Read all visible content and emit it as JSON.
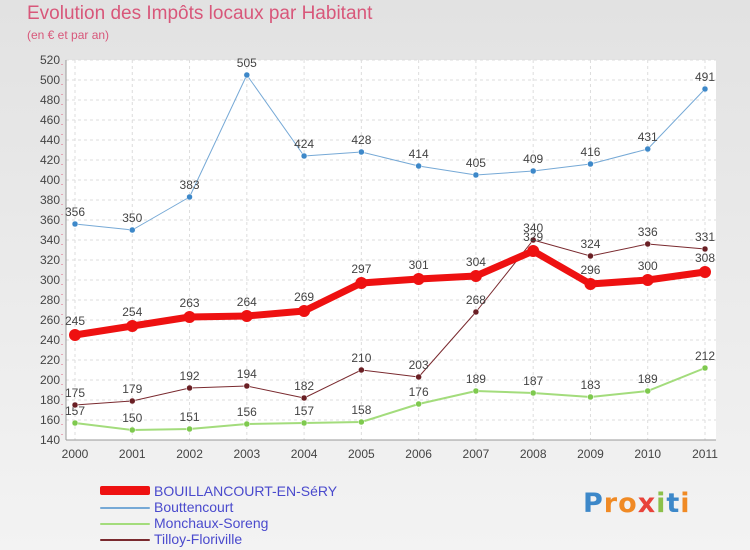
{
  "title": "Evolution des Impôts locaux par Habitant",
  "subtitle": "(en € et par an)",
  "brand": {
    "letters": [
      {
        "char": "P",
        "color": "#3d88c9"
      },
      {
        "char": "r",
        "color": "#f08a24"
      },
      {
        "char": "o",
        "color": "#f08a24"
      },
      {
        "char": "x",
        "color": "#e8433b"
      },
      {
        "char": "i",
        "color": "#8cc04a"
      },
      {
        "char": "t",
        "color": "#3d88c9"
      },
      {
        "char": "i",
        "color": "#f08a24"
      }
    ]
  },
  "chart_data": {
    "type": "line",
    "x": [
      "2000",
      "2001",
      "2002",
      "2003",
      "2004",
      "2005",
      "2006",
      "2007",
      "2008",
      "2009",
      "2010",
      "2011"
    ],
    "ylim": [
      140,
      520
    ],
    "yticks": [
      140,
      160,
      180,
      200,
      220,
      240,
      260,
      280,
      300,
      320,
      340,
      360,
      380,
      400,
      420,
      440,
      460,
      480,
      500,
      520
    ],
    "grid": true,
    "legend_position": "bottom-left",
    "series": [
      {
        "name": "Monchaux-Soreng",
        "color": "#a3dc7c",
        "marker_color": "#7ec94e",
        "width": 2,
        "values": [
          157,
          150,
          151,
          156,
          157,
          158,
          176,
          189,
          187,
          183,
          189,
          212
        ]
      },
      {
        "name": "Tilloy-Floriville",
        "color": "#7a2a2f",
        "marker_color": "#6a1f24",
        "width": 1,
        "values": [
          175,
          179,
          192,
          194,
          182,
          210,
          203,
          268,
          340,
          324,
          336,
          331
        ]
      },
      {
        "name": "Bouttencourt",
        "color": "#76a9d6",
        "marker_color": "#3d88c9",
        "width": 1,
        "values": [
          356,
          350,
          383,
          505,
          424,
          428,
          414,
          405,
          409,
          416,
          431,
          491
        ]
      },
      {
        "name": "BOUILLANCOURT-EN-SéRY",
        "color": "#ee1111",
        "marker_color": "#ee1111",
        "width": 7,
        "values": [
          245,
          254,
          263,
          264,
          269,
          297,
          301,
          304,
          329,
          296,
          300,
          308
        ]
      }
    ]
  },
  "legend": [
    {
      "label": "BOUILLANCOURT-EN-SéRY",
      "color": "#ee1111"
    },
    {
      "label": "Bouttencourt",
      "color": "#76a9d6"
    },
    {
      "label": "Monchaux-Soreng",
      "color": "#a3dc7c"
    },
    {
      "label": "Tilloy-Floriville",
      "color": "#7a2a2f"
    }
  ]
}
